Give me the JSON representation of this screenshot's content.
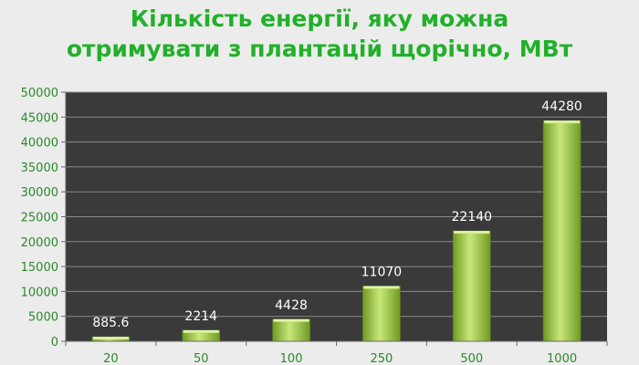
{
  "chart_data": {
    "type": "bar",
    "title_lines": [
      "Кількість енергії, яку можна",
      "отримувати з плантацій щорічно, МВт"
    ],
    "categories": [
      "20",
      "50",
      "100",
      "250",
      "500",
      "1000"
    ],
    "values": [
      885.6,
      2214,
      4428,
      11070,
      22140,
      44280
    ],
    "data_labels": [
      "885.6",
      "2214",
      "4428",
      "11070",
      "22140",
      "44280"
    ],
    "ylim": [
      0,
      50000
    ],
    "yticks": [
      "0",
      "5000",
      "10000",
      "15000",
      "20000",
      "25000",
      "30000",
      "35000",
      "40000",
      "45000",
      "50000"
    ],
    "grid": true,
    "legend": "none",
    "colors": {
      "plot_bg": "#3a3a3a",
      "bar_light": "#c9e77a",
      "bar_dark": "#6f9a22",
      "title": "#22b02a",
      "axis_text": "#2a8a2a"
    }
  }
}
